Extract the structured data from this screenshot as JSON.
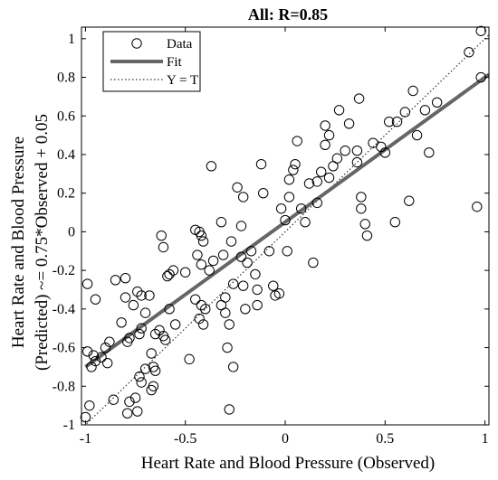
{
  "chart_data": {
    "type": "scatter",
    "title": "All: R=0.85",
    "xlabel": "Heart Rate and Blood Pressure (Observed)",
    "ylabel_line1": "Heart Rate and Blood Pressure",
    "ylabel_line2": "(Predicted) ~= 0.75*Observed + 0.05",
    "xlim": [
      -1.02,
      1.02
    ],
    "ylim": [
      -1.0,
      1.06
    ],
    "x_ticks": [
      -1,
      -0.5,
      0,
      0.5,
      1
    ],
    "x_tick_labels": [
      "-1",
      "-0.5",
      "0",
      "0.5",
      "1"
    ],
    "y_ticks": [
      -1,
      -0.8,
      -0.6,
      -0.4,
      -0.2,
      0,
      0.2,
      0.4,
      0.6,
      0.8,
      1
    ],
    "y_tick_labels": [
      "-1",
      "-0.8",
      "-0.6",
      "-0.4",
      "-0.2",
      "0",
      "0.2",
      "0.4",
      "0.6",
      "0.8",
      "1"
    ],
    "grid": false,
    "legend_position": "top-left",
    "legend": [
      {
        "label": "Data",
        "style": "circle"
      },
      {
        "label": "Fit",
        "style": "solid"
      },
      {
        "label": "Y = T",
        "style": "dotted"
      }
    ],
    "fit": {
      "slope": 0.75,
      "intercept": 0.05,
      "color": "#666666"
    },
    "identity": {
      "color": "#333333"
    },
    "points": [
      [
        -1.0,
        -0.96
      ],
      [
        -0.98,
        -0.9
      ],
      [
        -0.97,
        -0.7
      ],
      [
        -0.99,
        -0.62
      ],
      [
        -0.96,
        -0.64
      ],
      [
        -0.95,
        -0.67
      ],
      [
        -0.92,
        -0.65
      ],
      [
        -0.9,
        -0.6
      ],
      [
        -0.88,
        -0.57
      ],
      [
        -0.89,
        -0.68
      ],
      [
        -0.86,
        -0.87
      ],
      [
        -0.99,
        -0.27
      ],
      [
        -0.95,
        -0.35
      ],
      [
        -0.85,
        -0.25
      ],
      [
        -0.8,
        -0.24
      ],
      [
        -0.82,
        -0.47
      ],
      [
        -0.8,
        -0.34
      ],
      [
        -0.76,
        -0.38
      ],
      [
        -0.74,
        -0.31
      ],
      [
        -0.72,
        -0.33
      ],
      [
        -0.7,
        -0.42
      ],
      [
        -0.68,
        -0.33
      ],
      [
        -0.78,
        -0.55
      ],
      [
        -0.79,
        -0.57
      ],
      [
        -0.73,
        -0.53
      ],
      [
        -0.72,
        -0.5
      ],
      [
        -0.7,
        -0.71
      ],
      [
        -0.73,
        -0.75
      ],
      [
        -0.72,
        -0.78
      ],
      [
        -0.75,
        -0.86
      ],
      [
        -0.78,
        -0.88
      ],
      [
        -0.79,
        -0.94
      ],
      [
        -0.74,
        -0.93
      ],
      [
        -0.67,
        -0.63
      ],
      [
        -0.66,
        -0.7
      ],
      [
        -0.65,
        -0.72
      ],
      [
        -0.66,
        -0.8
      ],
      [
        -0.67,
        -0.82
      ],
      [
        -0.65,
        -0.53
      ],
      [
        -0.63,
        -0.51
      ],
      [
        -0.61,
        -0.54
      ],
      [
        -0.6,
        -0.56
      ],
      [
        -0.62,
        -0.02
      ],
      [
        -0.61,
        -0.08
      ],
      [
        -0.59,
        -0.23
      ],
      [
        -0.58,
        -0.22
      ],
      [
        -0.56,
        -0.2
      ],
      [
        -0.58,
        -0.4
      ],
      [
        -0.55,
        -0.48
      ],
      [
        -0.5,
        -0.21
      ],
      [
        -0.48,
        -0.66
      ],
      [
        -0.45,
        0.01
      ],
      [
        -0.43,
        0.0
      ],
      [
        -0.42,
        -0.02
      ],
      [
        -0.41,
        -0.05
      ],
      [
        -0.44,
        -0.12
      ],
      [
        -0.42,
        -0.17
      ],
      [
        -0.45,
        -0.35
      ],
      [
        -0.42,
        -0.38
      ],
      [
        -0.4,
        -0.4
      ],
      [
        -0.43,
        -0.45
      ],
      [
        -0.41,
        -0.48
      ],
      [
        -0.38,
        -0.2
      ],
      [
        -0.36,
        -0.15
      ],
      [
        -0.37,
        0.34
      ],
      [
        -0.32,
        0.05
      ],
      [
        -0.31,
        -0.12
      ],
      [
        -0.3,
        -0.34
      ],
      [
        -0.32,
        -0.38
      ],
      [
        -0.3,
        -0.42
      ],
      [
        -0.28,
        -0.48
      ],
      [
        -0.29,
        -0.6
      ],
      [
        -0.27,
        -0.05
      ],
      [
        -0.26,
        -0.27
      ],
      [
        -0.24,
        0.23
      ],
      [
        -0.22,
        0.03
      ],
      [
        -0.22,
        -0.13
      ],
      [
        -0.21,
        -0.28
      ],
      [
        -0.19,
        -0.16
      ],
      [
        -0.2,
        -0.4
      ],
      [
        -0.21,
        0.18
      ],
      [
        -0.17,
        -0.1
      ],
      [
        -0.15,
        -0.22
      ],
      [
        -0.14,
        -0.3
      ],
      [
        -0.14,
        -0.38
      ],
      [
        -0.26,
        -0.7
      ],
      [
        -0.28,
        -0.92
      ],
      [
        -0.12,
        0.35
      ],
      [
        -0.11,
        0.2
      ],
      [
        -0.08,
        -0.1
      ],
      [
        -0.06,
        -0.28
      ],
      [
        -0.05,
        -0.33
      ],
      [
        -0.03,
        -0.32
      ],
      [
        -0.02,
        0.12
      ],
      [
        0.0,
        0.06
      ],
      [
        0.02,
        0.18
      ],
      [
        0.02,
        0.27
      ],
      [
        0.01,
        -0.1
      ],
      [
        0.04,
        0.32
      ],
      [
        0.05,
        0.35
      ],
      [
        0.06,
        0.47
      ],
      [
        0.08,
        0.12
      ],
      [
        0.1,
        0.05
      ],
      [
        0.12,
        0.25
      ],
      [
        0.14,
        -0.16
      ],
      [
        0.16,
        0.15
      ],
      [
        0.16,
        0.26
      ],
      [
        0.18,
        0.31
      ],
      [
        0.2,
        0.45
      ],
      [
        0.22,
        0.5
      ],
      [
        0.2,
        0.55
      ],
      [
        0.24,
        0.34
      ],
      [
        0.22,
        0.28
      ],
      [
        0.26,
        0.38
      ],
      [
        0.27,
        0.63
      ],
      [
        0.3,
        0.42
      ],
      [
        0.32,
        0.56
      ],
      [
        0.36,
        0.42
      ],
      [
        0.37,
        0.69
      ],
      [
        0.36,
        0.36
      ],
      [
        0.38,
        0.18
      ],
      [
        0.38,
        0.12
      ],
      [
        0.4,
        0.04
      ],
      [
        0.41,
        -0.02
      ],
      [
        0.44,
        0.46
      ],
      [
        0.48,
        0.44
      ],
      [
        0.5,
        0.41
      ],
      [
        0.52,
        0.57
      ],
      [
        0.55,
        0.05
      ],
      [
        0.56,
        0.57
      ],
      [
        0.6,
        0.62
      ],
      [
        0.62,
        0.16
      ],
      [
        0.64,
        0.73
      ],
      [
        0.66,
        0.5
      ],
      [
        0.7,
        0.63
      ],
      [
        0.72,
        0.41
      ],
      [
        0.76,
        0.67
      ],
      [
        0.92,
        0.93
      ],
      [
        0.96,
        0.13
      ],
      [
        0.98,
        0.8
      ],
      [
        0.98,
        1.04
      ]
    ]
  }
}
